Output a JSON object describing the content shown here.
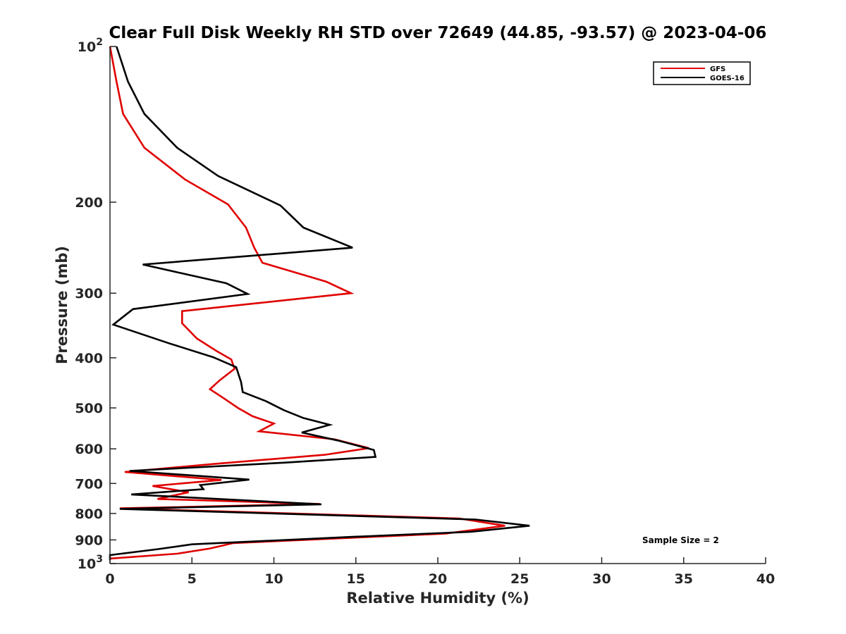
{
  "chart_data": {
    "type": "line",
    "title": "Clear Full Disk Weekly RH STD over 72649 (44.85, -93.57) @ 2023-04-06",
    "xlabel": "Relative Humidity (%)",
    "ylabel": "Pressure (mb)",
    "xlim": [
      0,
      40
    ],
    "ylim": [
      100,
      1000
    ],
    "yscale": "log",
    "y_reversed": true,
    "x_ticks": [
      "0",
      "5",
      "10",
      "15",
      "20",
      "25",
      "30",
      "35",
      "40"
    ],
    "y_ticks": [
      {
        "value": 100,
        "base": "10",
        "exp": "2"
      },
      {
        "value": 200,
        "label": "200"
      },
      {
        "value": 300,
        "label": "300"
      },
      {
        "value": 400,
        "label": "400"
      },
      {
        "value": 500,
        "label": "500"
      },
      {
        "value": 600,
        "label": "600"
      },
      {
        "value": 700,
        "label": "700"
      },
      {
        "value": 800,
        "label": "800"
      },
      {
        "value": 900,
        "label": "900"
      },
      {
        "value": 1000,
        "base": "10",
        "exp": "3"
      }
    ],
    "grid": false,
    "legend_position": "top-right",
    "annotation": "Sample Size = 2",
    "series": [
      {
        "name": "GFS",
        "color": "#e00000",
        "points": [
          [
            0.0,
            100
          ],
          [
            0.4,
            117
          ],
          [
            0.8,
            135
          ],
          [
            2.1,
            157
          ],
          [
            4.6,
            181
          ],
          [
            7.2,
            202
          ],
          [
            8.3,
            224
          ],
          [
            8.8,
            245
          ],
          [
            9.3,
            262
          ],
          [
            13.2,
            285
          ],
          [
            14.7,
            300
          ],
          [
            4.4,
            325
          ],
          [
            4.4,
            343
          ],
          [
            5.3,
            367
          ],
          [
            6.5,
            388
          ],
          [
            7.4,
            403
          ],
          [
            7.6,
            420
          ],
          [
            6.7,
            442
          ],
          [
            6.1,
            460
          ],
          [
            6.9,
            478
          ],
          [
            7.8,
            500
          ],
          [
            8.7,
            519
          ],
          [
            10.0,
            536
          ],
          [
            9.1,
            555
          ],
          [
            13.7,
            575
          ],
          [
            15.8,
            598
          ],
          [
            13.1,
            616
          ],
          [
            6.3,
            642
          ],
          [
            0.9,
            665
          ],
          [
            6.8,
            689
          ],
          [
            2.6,
            708
          ],
          [
            4.8,
            728
          ],
          [
            2.9,
            750
          ],
          [
            12.8,
            767
          ],
          [
            0.6,
            782
          ],
          [
            21.3,
            818
          ],
          [
            24.1,
            845
          ],
          [
            20.5,
            875
          ],
          [
            7.5,
            913
          ],
          [
            6.1,
            935
          ],
          [
            4.1,
            957
          ],
          [
            0.0,
            978
          ]
        ]
      },
      {
        "name": "GOES-16",
        "color": "#000000",
        "points": [
          [
            0.4,
            100
          ],
          [
            1.1,
            117
          ],
          [
            2.1,
            135
          ],
          [
            4.1,
            157
          ],
          [
            6.6,
            178
          ],
          [
            10.4,
            203
          ],
          [
            11.8,
            224
          ],
          [
            14.8,
            245
          ],
          [
            2.0,
            264
          ],
          [
            7.1,
            287
          ],
          [
            8.4,
            301
          ],
          [
            1.4,
            322
          ],
          [
            0.2,
            345
          ],
          [
            3.6,
            375
          ],
          [
            6.3,
            399
          ],
          [
            7.7,
            417
          ],
          [
            8.0,
            446
          ],
          [
            8.1,
            466
          ],
          [
            9.5,
            485
          ],
          [
            10.6,
            505
          ],
          [
            11.8,
            523
          ],
          [
            13.4,
            539
          ],
          [
            11.7,
            558
          ],
          [
            13.9,
            578
          ],
          [
            16.1,
            603
          ],
          [
            16.2,
            622
          ],
          [
            10.7,
            638
          ],
          [
            1.2,
            662
          ],
          [
            8.5,
            688
          ],
          [
            5.5,
            705
          ],
          [
            5.7,
            718
          ],
          [
            1.3,
            735
          ],
          [
            12.9,
            768
          ],
          [
            0.6,
            784
          ],
          [
            22.3,
            822
          ],
          [
            25.6,
            845
          ],
          [
            22.0,
            868
          ],
          [
            14.8,
            888
          ],
          [
            5.0,
            918
          ],
          [
            2.9,
            938
          ],
          [
            0.0,
            963
          ],
          [
            0.0,
            985
          ]
        ]
      }
    ]
  }
}
